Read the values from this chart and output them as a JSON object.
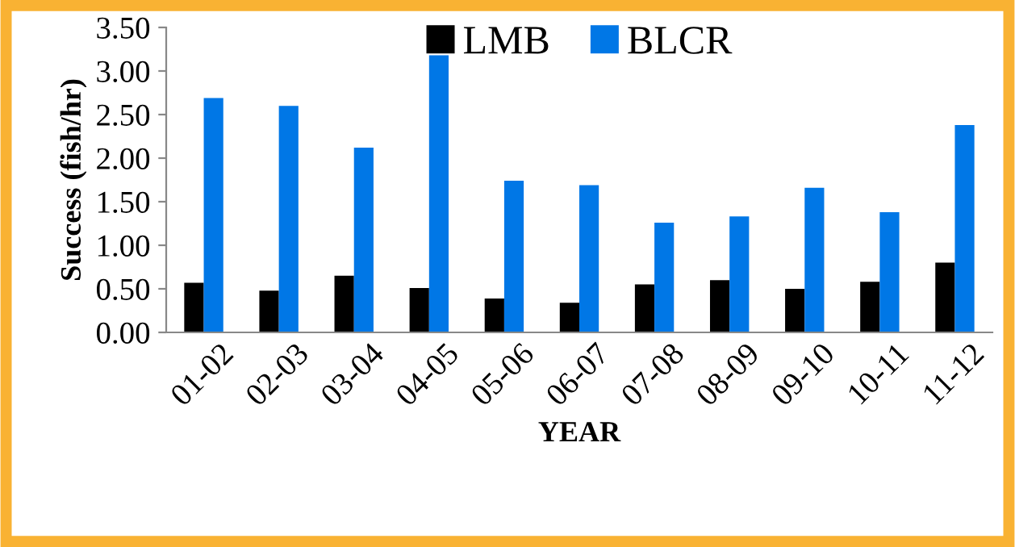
{
  "chart_data": {
    "type": "bar",
    "xlabel": "YEAR",
    "ylabel": "Success (fish/hr)",
    "categories": [
      "01-02",
      "02-03",
      "03-04",
      "04-05",
      "05-06",
      "06-07",
      "07-08",
      "08-09",
      "09-10",
      "10-11",
      "11-12"
    ],
    "series": [
      {
        "name": "LMB",
        "color": "#000000",
        "values": [
          0.57,
          0.48,
          0.65,
          0.51,
          0.39,
          0.34,
          0.55,
          0.6,
          0.5,
          0.58,
          0.8
        ]
      },
      {
        "name": "BLCR",
        "color": "#0077e6",
        "values": [
          2.69,
          2.6,
          2.12,
          3.18,
          1.74,
          1.69,
          1.26,
          1.33,
          1.66,
          1.38,
          2.38
        ]
      }
    ],
    "ylim": [
      0,
      3.5
    ],
    "yticks": [
      {
        "value": 0,
        "label": "0.00"
      },
      {
        "value": 0.5,
        "label": "0.50"
      },
      {
        "value": 1,
        "label": "1.00"
      },
      {
        "value": 1.5,
        "label": "1.50"
      },
      {
        "value": 2,
        "label": "2.00"
      },
      {
        "value": 2.5,
        "label": "2.50"
      },
      {
        "value": 3,
        "label": "3.00"
      },
      {
        "value": 3.5,
        "label": "3.50"
      }
    ],
    "grid": false,
    "legend": "top"
  }
}
